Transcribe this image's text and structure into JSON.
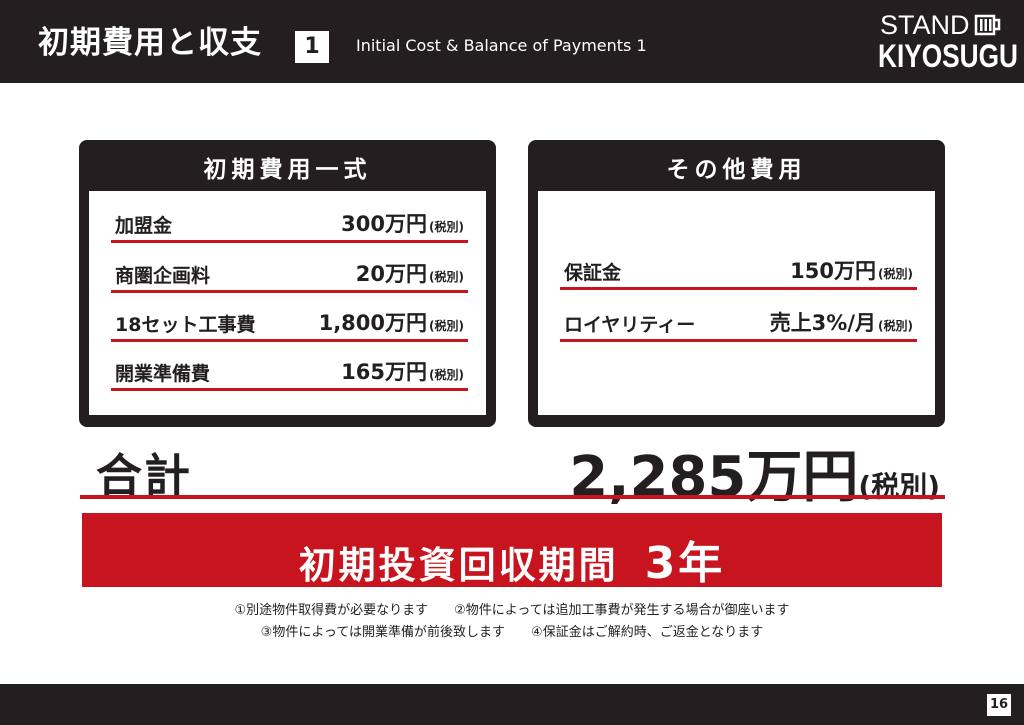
{
  "header": {
    "title_jp": "初期費用と収支",
    "title_num": "1",
    "title_en": "Initial Cost & Balance of Payments 1",
    "logo_line1": "STAND",
    "logo_line2": "KIYOSUGU"
  },
  "initial_costs": {
    "title": "初期費用一式",
    "items": [
      {
        "label": "加盟金",
        "value": "300万円",
        "note": "(税別)"
      },
      {
        "label": "商圏企画料",
        "value": "20万円",
        "note": "(税別)"
      },
      {
        "label": "18セット工事費",
        "value": "1,800万円",
        "note": "(税別)"
      },
      {
        "label": "開業準備費",
        "value": "165万円",
        "note": "(税別)"
      }
    ]
  },
  "other_costs": {
    "title": "その他費用",
    "items": [
      {
        "label": "保証金",
        "value": "150万円",
        "note": "(税別)"
      },
      {
        "label": "ロイヤリティー",
        "value": "売上3%/月",
        "note": "(税別)"
      }
    ]
  },
  "total": {
    "label": "合計",
    "amount": "2,285万円",
    "note": "(税別)"
  },
  "banner": {
    "text": "初期投資回収期間",
    "years": "3年"
  },
  "notes": {
    "line1a": "①別途物件取得費が必要なります",
    "line1b": "②物件によっては追加工事費が発生する場合が御座います",
    "line2a": "③物件によっては開業準備が前後致します",
    "line2b": "④保証金はご解約時、ご返金となります"
  },
  "footer": {
    "page": "16"
  }
}
